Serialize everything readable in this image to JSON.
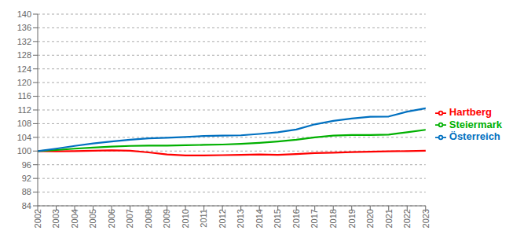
{
  "chart_data": {
    "type": "line",
    "x": [
      2002,
      2003,
      2004,
      2005,
      2006,
      2007,
      2008,
      2009,
      2010,
      2011,
      2012,
      2013,
      2014,
      2015,
      2016,
      2017,
      2018,
      2019,
      2020,
      2021,
      2022,
      2023
    ],
    "xlim": [
      2002,
      2023
    ],
    "xticks": [
      2002,
      2003,
      2004,
      2005,
      2006,
      2007,
      2008,
      2009,
      2010,
      2011,
      2012,
      2013,
      2014,
      2015,
      2016,
      2017,
      2018,
      2019,
      2020,
      2021,
      2022,
      2023
    ],
    "ylim": [
      84,
      140
    ],
    "yticks": [
      84,
      88,
      92,
      96,
      100,
      104,
      108,
      112,
      116,
      120,
      124,
      128,
      132,
      136,
      140
    ],
    "grid": "y",
    "legend": "right",
    "series": [
      {
        "name": "Hartberg",
        "color": "#ff0000",
        "values": [
          100.0,
          99.9,
          100.0,
          100.1,
          100.2,
          100.1,
          99.6,
          99.0,
          98.7,
          98.7,
          98.8,
          98.9,
          99.0,
          98.9,
          99.1,
          99.4,
          99.5,
          99.7,
          99.8,
          99.9,
          100.0,
          100.1
        ]
      },
      {
        "name": "Steiermark",
        "color": "#00b000",
        "values": [
          100.0,
          100.3,
          100.7,
          101.0,
          101.3,
          101.5,
          101.6,
          101.6,
          101.7,
          101.8,
          101.9,
          102.1,
          102.4,
          102.8,
          103.3,
          104.0,
          104.5,
          104.7,
          104.7,
          104.8,
          105.5,
          106.2
        ]
      },
      {
        "name": "Österreich",
        "color": "#0070c0",
        "values": [
          100.0,
          100.7,
          101.5,
          102.2,
          102.8,
          103.3,
          103.7,
          103.9,
          104.1,
          104.4,
          104.5,
          104.6,
          105.0,
          105.5,
          106.3,
          107.8,
          108.8,
          109.5,
          110.0,
          110.1,
          111.5,
          112.5
        ]
      }
    ]
  }
}
